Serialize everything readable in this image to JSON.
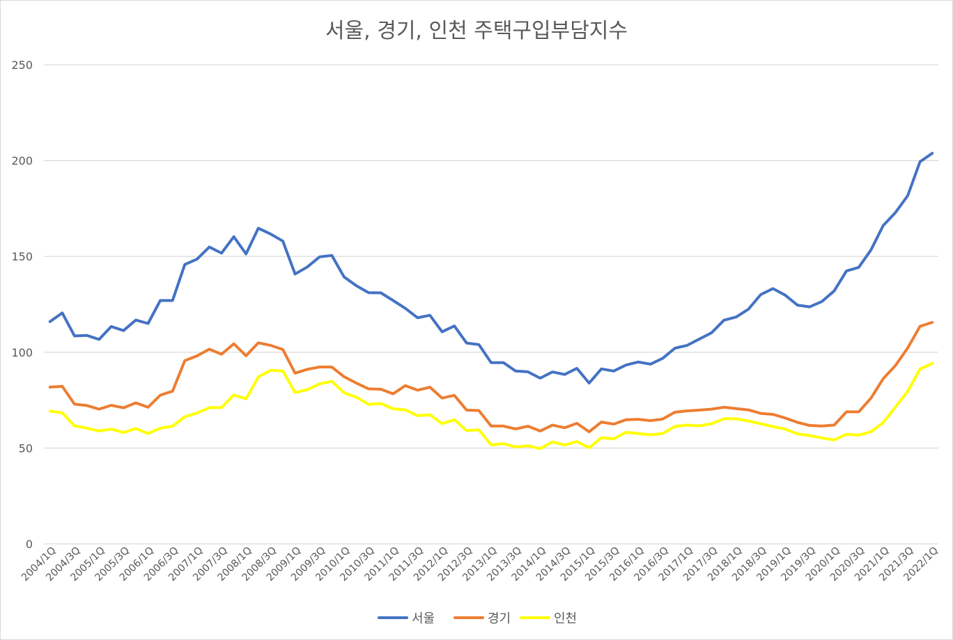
{
  "chart_data": {
    "type": "line",
    "title": "서울, 경기, 인천 주택구입부담지수",
    "xlabel": "",
    "ylabel": "",
    "ylim": [
      0,
      250
    ],
    "yticks": [
      0,
      50,
      100,
      150,
      200,
      250
    ],
    "grid": true,
    "legend_position": "bottom",
    "x": [
      "2004/1Q",
      "2004/2Q",
      "2004/3Q",
      "2004/4Q",
      "2005/1Q",
      "2005/2Q",
      "2005/3Q",
      "2005/4Q",
      "2006/1Q",
      "2006/2Q",
      "2006/3Q",
      "2006/4Q",
      "2007/1Q",
      "2007/2Q",
      "2007/3Q",
      "2007/4Q",
      "2008/1Q",
      "2008/2Q",
      "2008/3Q",
      "2008/4Q",
      "2009/1Q",
      "2009/2Q",
      "2009/3Q",
      "2009/4Q",
      "2010/1Q",
      "2010/2Q",
      "2010/3Q",
      "2010/4Q",
      "2011/1Q",
      "2011/2Q",
      "2011/3Q",
      "2011/4Q",
      "2012/1Q",
      "2012/2Q",
      "2012/3Q",
      "2012/4Q",
      "2013/1Q",
      "2013/2Q",
      "2013/3Q",
      "2013/4Q",
      "2014/1Q",
      "2014/2Q",
      "2014/3Q",
      "2014/4Q",
      "2015/1Q",
      "2015/2Q",
      "2015/3Q",
      "2015/4Q",
      "2016/1Q",
      "2016/2Q",
      "2016/3Q",
      "2016/4Q",
      "2017/1Q",
      "2017/2Q",
      "2017/3Q",
      "2017/4Q",
      "2018/1Q",
      "2018/2Q",
      "2018/3Q",
      "2018/4Q",
      "2019/1Q",
      "2019/2Q",
      "2019/3Q",
      "2019/4Q",
      "2020/1Q",
      "2020/2Q",
      "2020/3Q",
      "2020/4Q",
      "2021/1Q",
      "2021/2Q",
      "2021/3Q",
      "2021/4Q",
      "2022/1Q"
    ],
    "x_tick_labels": [
      "2004/1Q",
      "2004/3Q",
      "2005/1Q",
      "2005/3Q",
      "2006/1Q",
      "2006/3Q",
      "2007/1Q",
      "2007/3Q",
      "2008/1Q",
      "2008/3Q",
      "2009/1Q",
      "2009/3Q",
      "2010/1Q",
      "2010/3Q",
      "2011/1Q",
      "2011/3Q",
      "2012/1Q",
      "2012/3Q",
      "2013/1Q",
      "2013/3Q",
      "2014/1Q",
      "2014/3Q",
      "2015/1Q",
      "2015/3Q",
      "2016/1Q",
      "2016/3Q",
      "2017/1Q",
      "2017/3Q",
      "2018/1Q",
      "2018/3Q",
      "2019/1Q",
      "2019/3Q",
      "2020/1Q",
      "2020/3Q",
      "2021/1Q",
      "2021/3Q",
      "2022/1Q"
    ],
    "series": [
      {
        "name": "서울",
        "color": "#4472C4",
        "values": [
          116,
          120.5,
          108.5,
          108.8,
          106.7,
          113.4,
          111.3,
          116.8,
          115,
          127,
          127,
          145.8,
          148.6,
          154.9,
          151.7,
          160.3,
          151.3,
          164.7,
          161.7,
          158,
          140.8,
          144.5,
          149.8,
          150.5,
          139.3,
          134.7,
          131.1,
          131,
          127,
          122.9,
          118,
          119.3,
          110.7,
          113.7,
          104.8,
          104,
          94.6,
          94.6,
          90.2,
          89.8,
          86.5,
          89.7,
          88.4,
          91.6,
          83.9,
          91.3,
          90.2,
          93.3,
          94.9,
          93.8,
          96.8,
          102.1,
          103.6,
          106.9,
          110.2,
          116.7,
          118.4,
          122.5,
          130.1,
          133.2,
          129.8,
          124.6,
          123.7,
          126.5,
          132,
          142.4,
          144.3,
          153.4,
          166.1,
          172.9,
          181.7,
          199.4,
          203.8
        ]
      },
      {
        "name": "경기",
        "color": "#ED7D31",
        "values": [
          81.8,
          82.2,
          72.9,
          72.2,
          70.3,
          72.3,
          71,
          73.6,
          71.3,
          77.6,
          79.7,
          95.6,
          98.1,
          101.6,
          99,
          104.4,
          98.2,
          104.9,
          103.6,
          101.4,
          89.1,
          91.1,
          92.3,
          92.3,
          87.2,
          83.9,
          80.9,
          80.7,
          78.3,
          82.6,
          80.2,
          81.8,
          76.1,
          77.5,
          69.8,
          69.6,
          61.5,
          61.5,
          60,
          61.4,
          58.9,
          62,
          60.6,
          62.9,
          58.5,
          63.6,
          62.5,
          64.8,
          65,
          64.3,
          65.1,
          68.7,
          69.4,
          69.8,
          70.3,
          71.3,
          70.6,
          69.9,
          68.1,
          67.6,
          65.7,
          63.4,
          61.8,
          61.5,
          62,
          68.9,
          68.9,
          76.1,
          86.2,
          93.1,
          102.2,
          113.5,
          115.6
        ]
      },
      {
        "name": "인천",
        "color": "#FFFF00",
        "values": [
          69.3,
          68.4,
          61.6,
          60.4,
          58.9,
          59.9,
          58.1,
          60.2,
          57.6,
          60.4,
          61.4,
          66.3,
          68.3,
          71.1,
          71.1,
          77.7,
          75.7,
          87.1,
          90.6,
          90.2,
          79,
          80.5,
          83.5,
          84.8,
          78.8,
          76.6,
          72.8,
          73.3,
          70.5,
          69.9,
          66.9,
          67.4,
          62.7,
          64.8,
          59.1,
          59.5,
          51.7,
          52.3,
          50.6,
          51.2,
          49.7,
          53.2,
          51.6,
          53.4,
          50.1,
          55.4,
          54.8,
          58.2,
          57.6,
          56.9,
          57.6,
          61.3,
          62,
          61.6,
          62.7,
          65.3,
          65.3,
          64.1,
          62.7,
          61.2,
          59.9,
          57.4,
          56.5,
          55.3,
          54.2,
          57.2,
          56.8,
          58.5,
          63.3,
          71.4,
          79.6,
          91.2,
          94.2
        ]
      }
    ]
  }
}
